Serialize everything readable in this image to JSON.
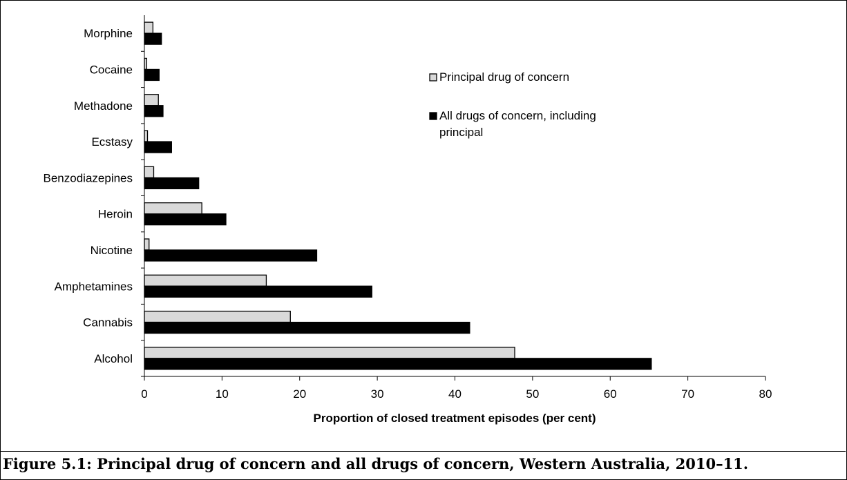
{
  "chart_data": {
    "type": "bar",
    "orientation": "horizontal",
    "categories": [
      "Alcohol",
      "Cannabis",
      "Amphetamines",
      "Nicotine",
      "Heroin",
      "Benzodiazepines",
      "Ecstasy",
      "Methadone",
      "Cocaine",
      "Morphine"
    ],
    "series": [
      {
        "name": "Principal drug of concern",
        "color": "#d9d9d9",
        "values": [
          47.7,
          18.8,
          15.7,
          0.6,
          7.4,
          1.2,
          0.4,
          1.8,
          0.3,
          1.1
        ]
      },
      {
        "name": "All drugs of concern, including principal",
        "color": "#000000",
        "values": [
          65.3,
          41.9,
          29.3,
          22.2,
          10.5,
          7.0,
          3.5,
          2.4,
          1.9,
          2.2
        ]
      }
    ],
    "xlabel": "Proportion of closed treatment episodes (per cent)",
    "ylabel": "",
    "xlim": [
      0,
      80
    ],
    "xticks": [
      0,
      10,
      20,
      30,
      40,
      50,
      60,
      70,
      80
    ],
    "grid": false,
    "legend_position": "top-right",
    "legend_lines": [
      [
        "Principal drug of concern"
      ],
      [
        "All drugs of concern, including",
        "principal"
      ]
    ]
  },
  "caption": "Figure 5.1: Principal drug of concern and all drugs of concern, Western Australia, 2010–11."
}
